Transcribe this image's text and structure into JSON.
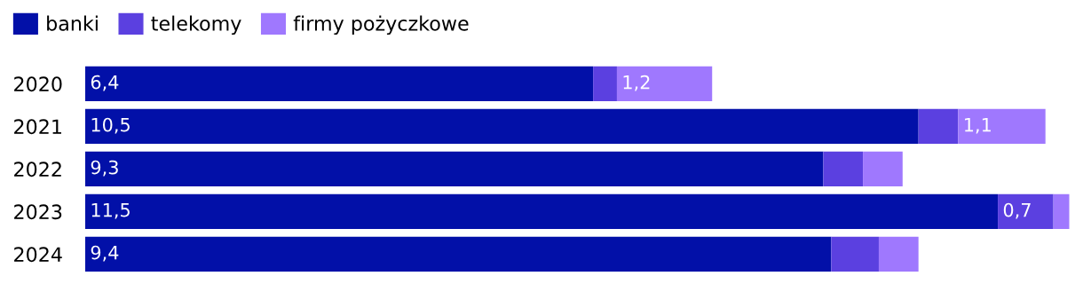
{
  "chart_data": {
    "type": "bar",
    "orientation": "horizontal",
    "stacked": true,
    "legend": "top left",
    "grid": false,
    "tick_labels": "y",
    "categories": [
      "2020",
      "2021",
      "2022",
      "2023",
      "2024"
    ],
    "series": [
      {
        "name": "banki",
        "color": "#0210a8",
        "values": [
          6.4,
          10.5,
          9.3,
          11.5,
          9.4
        ],
        "value_labels": [
          "6,4",
          "10,5",
          "9,3",
          "11,5",
          "9,4"
        ]
      },
      {
        "name": "telekomy",
        "color": "#5b40e0",
        "values": [
          0.3,
          0.5,
          0.5,
          0.7,
          0.6
        ],
        "value_labels": [
          null,
          null,
          null,
          "0,7",
          null
        ]
      },
      {
        "name": "firmy pożyczkowe",
        "color": "#9f78fe",
        "values": [
          1.2,
          1.1,
          0.5,
          0.2,
          0.5
        ],
        "value_labels": [
          "1,2",
          "1,1",
          null,
          null,
          null
        ]
      }
    ]
  }
}
